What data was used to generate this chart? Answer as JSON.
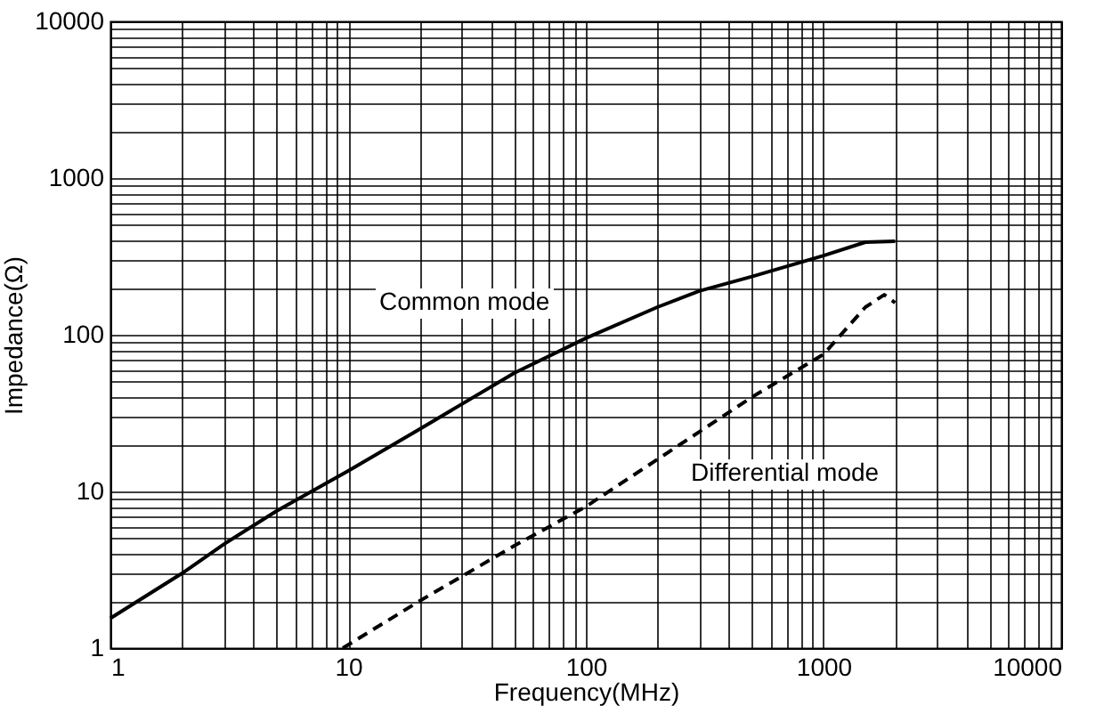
{
  "chart_data": {
    "type": "line",
    "xlabel": "Frequency(MHz)",
    "ylabel": "Impedance(Ω)",
    "log": "xy",
    "grid": true,
    "marker": "none",
    "xlim": [
      1,
      10000
    ],
    "ylim": [
      1,
      10000
    ],
    "xticks": [
      1,
      {
        "value": 2,
        "label": null
      },
      {
        "value": 3,
        "label": null
      },
      {
        "value": 4,
        "label": null
      },
      {
        "value": 5,
        "label": null
      },
      {
        "value": 6,
        "label": null
      },
      {
        "value": 7,
        "label": null
      },
      {
        "value": 8,
        "label": null
      },
      {
        "value": 9,
        "label": null
      },
      10,
      {
        "value": 20,
        "label": null
      },
      {
        "value": 30,
        "label": null
      },
      {
        "value": 40,
        "label": null
      },
      {
        "value": 50,
        "label": null
      },
      {
        "value": 60,
        "label": null
      },
      {
        "value": 70,
        "label": null
      },
      {
        "value": 80,
        "label": null
      },
      {
        "value": 90,
        "label": null
      },
      100,
      {
        "value": 200,
        "label": null
      },
      {
        "value": 300,
        "label": null
      },
      {
        "value": 400,
        "label": null
      },
      {
        "value": 500,
        "label": null
      },
      {
        "value": 600,
        "label": null
      },
      {
        "value": 700,
        "label": null
      },
      {
        "value": 800,
        "label": null
      },
      {
        "value": 900,
        "label": null
      },
      1000,
      {
        "value": 2000,
        "label": null
      },
      {
        "value": 3000,
        "label": null
      },
      {
        "value": 4000,
        "label": null
      },
      {
        "value": 5000,
        "label": null
      },
      {
        "value": 6000,
        "label": null
      },
      {
        "value": 7000,
        "label": null
      },
      {
        "value": 8000,
        "label": null
      },
      {
        "value": 9000,
        "label": null
      },
      10000
    ],
    "yticks": [
      1,
      {
        "value": 2,
        "label": null
      },
      {
        "value": 3,
        "label": null
      },
      {
        "value": 4,
        "label": null
      },
      {
        "value": 5,
        "label": null
      },
      {
        "value": 6,
        "label": null
      },
      {
        "value": 7,
        "label": null
      },
      {
        "value": 8,
        "label": null
      },
      {
        "value": 9,
        "label": null
      },
      10,
      {
        "value": 20,
        "label": null
      },
      {
        "value": 30,
        "label": null
      },
      {
        "value": 40,
        "label": null
      },
      {
        "value": 50,
        "label": null
      },
      {
        "value": 60,
        "label": null
      },
      {
        "value": 70,
        "label": null
      },
      {
        "value": 80,
        "label": null
      },
      {
        "value": 90,
        "label": null
      },
      100,
      {
        "value": 200,
        "label": null
      },
      {
        "value": 300,
        "label": null
      },
      {
        "value": 400,
        "label": null
      },
      {
        "value": 500,
        "label": null
      },
      {
        "value": 600,
        "label": null
      },
      {
        "value": 700,
        "label": null
      },
      {
        "value": 800,
        "label": null
      },
      {
        "value": 900,
        "label": null
      },
      1000,
      {
        "value": 2000,
        "label": null
      },
      {
        "value": 3000,
        "label": null
      },
      {
        "value": 4000,
        "label": null
      },
      {
        "value": 5000,
        "label": null
      },
      {
        "value": 6000,
        "label": null
      },
      {
        "value": 7000,
        "label": null
      },
      {
        "value": 8000,
        "label": null
      },
      {
        "value": 9000,
        "label": null
      },
      10000
    ],
    "series": [
      {
        "name": "Common mode",
        "color": "#000000",
        "line_style": "solid",
        "x": [
          1,
          2,
          3,
          5,
          10,
          20,
          50,
          100,
          200,
          300,
          500,
          1000,
          1500,
          2000
        ],
        "values": [
          1.55,
          3,
          4.6,
          7.5,
          13.5,
          25,
          57,
          95,
          150,
          190,
          235,
          320,
          390,
          395
        ]
      },
      {
        "name": "Differential mode",
        "color": "#000000",
        "line_style": "dashed",
        "x": [
          9.5,
          20,
          50,
          100,
          200,
          300,
          500,
          1000,
          1500,
          1800,
          2000
        ],
        "values": [
          1,
          2,
          4.5,
          8,
          16,
          24,
          40,
          75,
          150,
          180,
          160
        ]
      }
    ]
  }
}
